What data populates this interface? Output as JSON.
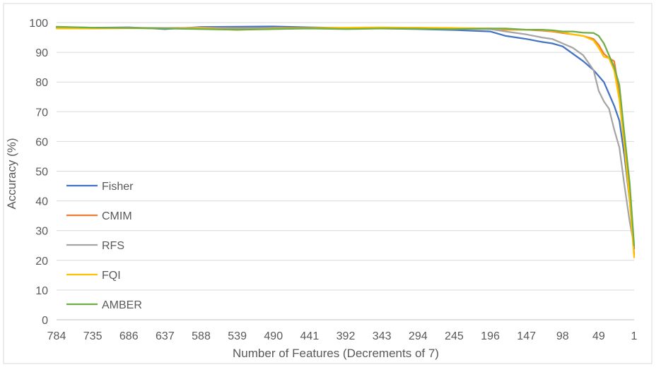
{
  "chart_data": {
    "type": "line",
    "title": "",
    "xlabel": "Number of Features (Decrements of 7)",
    "ylabel": "Accuracy (%)",
    "ylim": [
      0,
      100
    ],
    "yticks": [
      0,
      10,
      20,
      30,
      40,
      50,
      60,
      70,
      80,
      90,
      100
    ],
    "xticks": [
      784,
      735,
      686,
      637,
      588,
      539,
      490,
      441,
      392,
      343,
      294,
      245,
      196,
      147,
      98,
      49,
      1
    ],
    "x_reversed": true,
    "grid": "horizontal",
    "legend_position": "left-inside",
    "x": [
      784,
      735,
      686,
      637,
      588,
      539,
      490,
      441,
      392,
      343,
      294,
      245,
      196,
      175,
      147,
      126,
      112,
      98,
      84,
      70,
      56,
      49,
      42,
      35,
      28,
      21,
      14,
      7,
      1
    ],
    "series": [
      {
        "name": "Fisher",
        "color": "#4472C4",
        "values": [
          98.5,
          98.3,
          98.4,
          97.8,
          98.5,
          98.6,
          98.7,
          98.4,
          98.2,
          98.0,
          97.8,
          97.5,
          97.0,
          95.5,
          94.5,
          93.5,
          93.0,
          92.0,
          89.5,
          87.0,
          84.0,
          82.0,
          80.0,
          76.0,
          72.0,
          67.0,
          55.0,
          40.0,
          24.0
        ]
      },
      {
        "name": "CMIM",
        "color": "#ED7D31",
        "values": [
          98.4,
          98.2,
          98.3,
          98.0,
          98.3,
          98.2,
          98.2,
          98.1,
          98.0,
          98.1,
          98.0,
          97.9,
          97.8,
          97.6,
          97.6,
          97.3,
          97.0,
          96.5,
          96.0,
          95.5,
          94.5,
          92.5,
          89.5,
          88.0,
          87.0,
          76.0,
          62.0,
          45.0,
          22.0
        ]
      },
      {
        "name": "RFS",
        "color": "#A5A5A5",
        "values": [
          98.4,
          98.2,
          98.3,
          98.2,
          98.3,
          98.1,
          98.2,
          98.0,
          98.1,
          98.1,
          98.3,
          98.0,
          97.8,
          97.0,
          96.0,
          95.0,
          94.5,
          93.0,
          91.5,
          89.0,
          84.0,
          77.0,
          73.5,
          71.0,
          64.0,
          58.0,
          45.0,
          33.0,
          25.0
        ]
      },
      {
        "name": "FQI",
        "color": "#FFC000",
        "values": [
          98.0,
          98.0,
          98.1,
          98.0,
          98.1,
          97.5,
          98.0,
          98.2,
          98.3,
          98.4,
          98.3,
          98.2,
          98.0,
          97.8,
          97.6,
          97.5,
          97.2,
          96.8,
          96.0,
          95.5,
          94.0,
          91.5,
          88.5,
          88.0,
          84.0,
          74.0,
          58.0,
          40.0,
          21.0
        ]
      },
      {
        "name": "AMBER",
        "color": "#70AD47",
        "values": [
          98.6,
          98.3,
          98.2,
          98.0,
          97.8,
          97.6,
          97.8,
          98.0,
          97.8,
          98.0,
          97.9,
          97.8,
          98.0,
          98.0,
          97.6,
          97.6,
          97.4,
          97.0,
          97.0,
          96.6,
          96.5,
          95.5,
          93.0,
          89.0,
          85.0,
          79.0,
          62.0,
          46.0,
          25.0
        ]
      }
    ]
  }
}
